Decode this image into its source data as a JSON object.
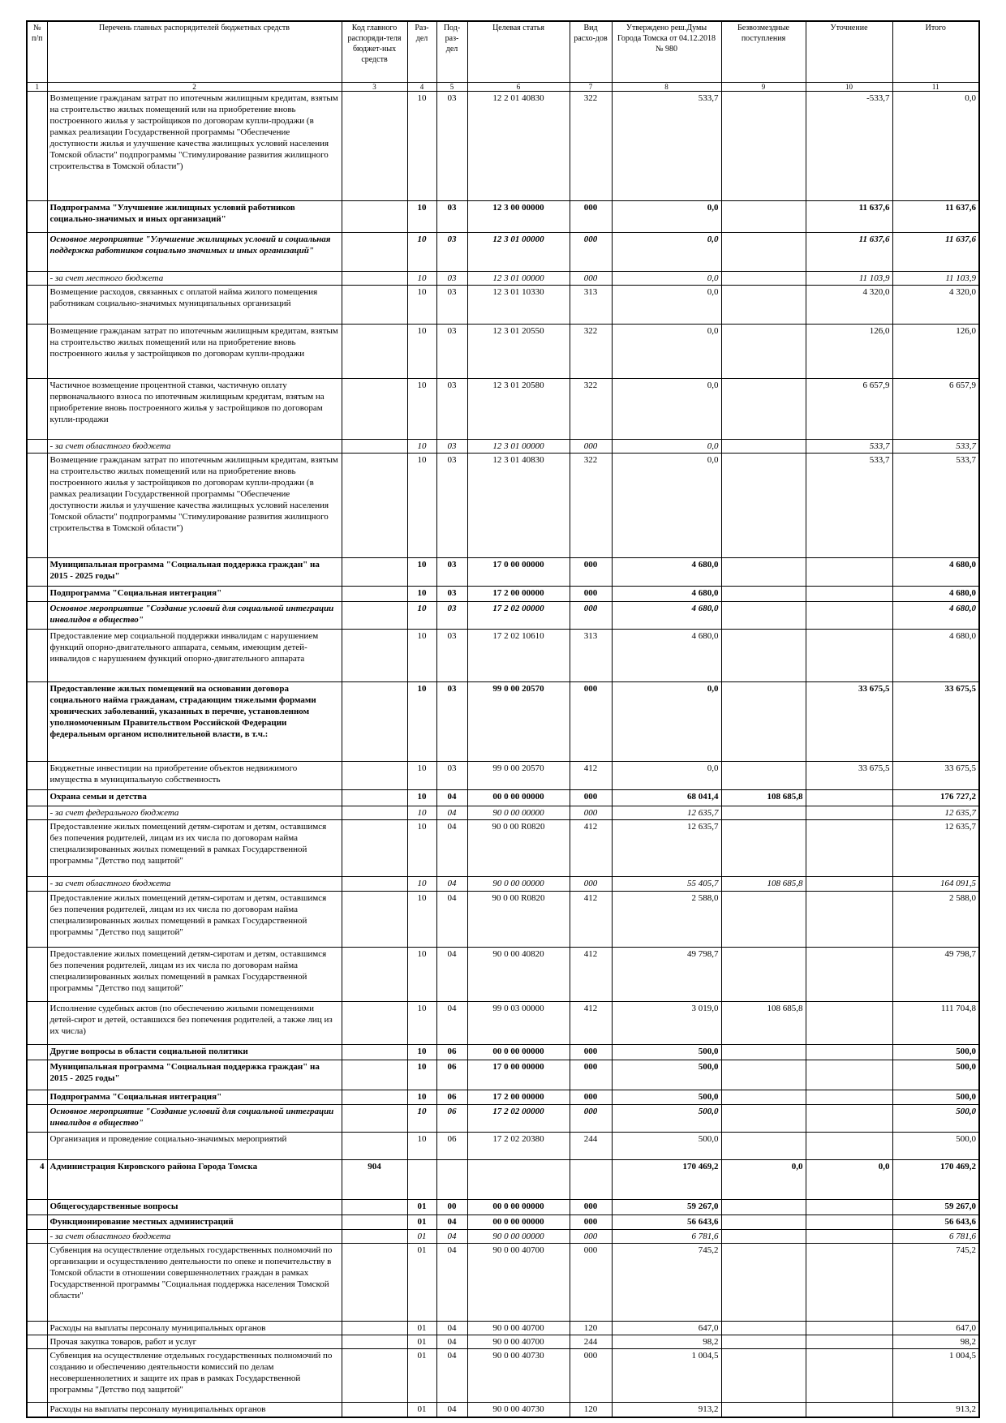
{
  "header": {
    "columns": [
      "№ п/п",
      "Перечень главных распорядителей бюджетных средств",
      "Код главного распоряди-теля бюджет-ных средств",
      "Раз-дел",
      "Под-раз-дел",
      "Целевая статья",
      "Вид расхо-дов",
      "Утверждено реш.Думы Города Томска от 04.12.2018 № 980",
      "Безвозмездные поступления",
      "Уточнение",
      "Итого"
    ],
    "numbers": [
      "1",
      "2",
      "3",
      "4",
      "5",
      "6",
      "7",
      "8",
      "9",
      "10",
      "11"
    ]
  },
  "table": {
    "rows": [
      {
        "style": "normal",
        "cells": [
          null,
          "Возмещение гражданам затрат по ипотечным жилищным кредитам, взятым на строительство жилых помещений или на приобретение вновь построенного жилья у застройщиков по договорам купли-продажи (в рамках реализации Государственной программы \"Обеспечение доступности жилья и улучшение качества жилищных условий населения Томской области\" подпрограммы \"Стимулирование развития жилищного строительства в Томской области\")",
          null,
          "10",
          "03",
          "12 2 01 40830",
          "322",
          "533,7",
          null,
          "-533,7",
          "0,0"
        ]
      },
      {
        "style": "bold",
        "cells": [
          null,
          "Подпрограмма \"Улучшение жилищных условий работников социально-значимых и иных организаций\"",
          null,
          "10",
          "03",
          "12 3 00 00000",
          "000",
          "0,0",
          null,
          "11 637,6",
          "11 637,6"
        ]
      },
      {
        "style": "bold-italic",
        "cells": [
          null,
          "Основное мероприятие \"Улучшение жилищных условий и социальная поддержка работников социально значимых и иных организаций\"",
          null,
          "10",
          "03",
          "12 3 01 00000",
          "000",
          "0,0",
          null,
          "11 637,6",
          "11 637,6"
        ]
      },
      {
        "style": "italic",
        "cells": [
          null,
          "- за счет местного бюджета",
          null,
          "10",
          "03",
          "12 3 01 00000",
          "000",
          "0,0",
          null,
          "11 103,9",
          "11 103,9"
        ]
      },
      {
        "style": "normal",
        "cells": [
          null,
          "Возмещение расходов, связанных с оплатой найма жилого помещения работникам социально-значимых муниципальных организаций",
          null,
          "10",
          "03",
          "12 3 01 10330",
          "313",
          "0,0",
          null,
          "4 320,0",
          "4 320,0"
        ]
      },
      {
        "style": "normal",
        "cells": [
          null,
          "Возмещение гражданам затрат по ипотечным жилищным кредитам, взятым на строительство жилых помещений или на приобретение вновь построенного жилья у застройщиков по договорам купли-продажи",
          null,
          "10",
          "03",
          "12 3 01 20550",
          "322",
          "0,0",
          null,
          "126,0",
          "126,0"
        ]
      },
      {
        "style": "normal",
        "cells": [
          null,
          "Частичное возмещение процентной ставки, частичную оплату первоначального взноса по ипотечным жилищным кредитам, взятым на приобретение вновь построенного жилья у застройщиков по договорам купли-продажи",
          null,
          "10",
          "03",
          "12 3 01 20580",
          "322",
          "0,0",
          null,
          "6 657,9",
          "6 657,9"
        ]
      },
      {
        "style": "italic",
        "cells": [
          null,
          "- за счет областного бюджета",
          null,
          "10",
          "03",
          "12 3 01 00000",
          "000",
          "0,0",
          null,
          "533,7",
          "533,7"
        ]
      },
      {
        "style": "normal",
        "cells": [
          null,
          "Возмещение гражданам затрат по ипотечным жилищным кредитам, взятым на строительство жилых помещений или на приобретение вновь построенного жилья у застройщиков по договорам купли-продажи (в рамках реализации Государственной программы \"Обеспечение доступности жилья и улучшение качества жилищных условий населения Томской области\" подпрограммы \"Стимулирование развития жилищного строительства в Томской области\")",
          null,
          "10",
          "03",
          "12 3 01 40830",
          "322",
          "0,0",
          null,
          "533,7",
          "533,7"
        ]
      },
      {
        "style": "bold-large",
        "cells": [
          null,
          "Муниципальная программа \"Социальная поддержка граждан\" на 2015 - 2025 годы\"",
          null,
          "10",
          "03",
          "17 0 00 00000",
          "000",
          "4 680,0",
          null,
          null,
          "4 680,0"
        ]
      },
      {
        "style": "bold",
        "cells": [
          null,
          "Подпрограмма \"Социальная интеграция\"",
          null,
          "10",
          "03",
          "17 2 00 00000",
          "000",
          "4 680,0",
          null,
          null,
          "4 680,0"
        ]
      },
      {
        "style": "bold-italic",
        "cells": [
          null,
          "Основное мероприятие \"Создание условий для социальной интеграции инвалидов в общество\"",
          null,
          "10",
          "03",
          "17 2 02 00000",
          "000",
          "4 680,0",
          null,
          null,
          "4 680,0"
        ]
      },
      {
        "style": "normal",
        "cells": [
          null,
          "Предоставление мер социальной поддержки инвалидам с нарушением функций опорно-двигательного аппарата, семьям, имеющим детей-инвалидов с нарушением функций опорно-двигательного аппарата",
          null,
          "10",
          "03",
          "17 2 02 10610",
          "313",
          "4 680,0",
          null,
          null,
          "4 680,0"
        ]
      },
      {
        "style": "bold",
        "cells": [
          null,
          "Предоставление жилых помещений на основании договора социального найма гражданам, страдающим тяжелыми формами хронических заболеваний, указанных в перечне, установленном уполномоченным Правительством Российской Федерации федеральным органом исполнительной власти, в т.ч.:",
          null,
          "10",
          "03",
          "99 0 00 20570",
          "000",
          "0,0",
          null,
          "33 675,5",
          "33 675,5"
        ]
      },
      {
        "style": "normal",
        "cells": [
          null,
          "Бюджетные инвестиции на приобретение объектов недвижимого имущества в муниципальную собственность",
          null,
          "10",
          "03",
          "99 0 00 20570",
          "412",
          "0,0",
          null,
          "33 675,5",
          "33 675,5"
        ]
      },
      {
        "style": "blue",
        "cells": [
          null,
          "Охрана семьи и детства",
          null,
          "10",
          "04",
          "00 0 00 00000",
          "000",
          "68 041,4",
          "108 685,8",
          null,
          "176 727,2"
        ]
      },
      {
        "style": "italic",
        "cells": [
          null,
          "- за счет федерального бюджета",
          null,
          "10",
          "04",
          "90 0 00 00000",
          "000",
          "12 635,7",
          null,
          null,
          "12 635,7"
        ]
      },
      {
        "style": "normal",
        "cells": [
          null,
          "Предоставление жилых помещений детям-сиротам и детям, оставшимся без попечения родителей, лицам из их числа по договорам найма специализированных жилых помещений в рамках Государственной программы \"Детство под защитой\"",
          null,
          "10",
          "04",
          "90 0 00 R0820",
          "412",
          "12 635,7",
          null,
          null,
          "12 635,7"
        ]
      },
      {
        "style": "italic",
        "cells": [
          null,
          "- за счет областного бюджета",
          null,
          "10",
          "04",
          "90 0 00 00000",
          "000",
          "55 405,7",
          "108 685,8",
          null,
          "164 091,5"
        ]
      },
      {
        "style": "normal",
        "cells": [
          null,
          "Предоставление жилых помещений детям-сиротам и детям, оставшимся без попечения родителей, лицам из их числа по договорам найма специализированных жилых помещений в рамках Государственной программы \"Детство под защитой\"",
          null,
          "10",
          "04",
          "90 0 00 R0820",
          "412",
          "2 588,0",
          null,
          null,
          "2 588,0"
        ]
      },
      {
        "style": "normal",
        "cells": [
          null,
          "Предоставление жилых помещений детям-сиротам и детям, оставшимся без попечения родителей, лицам из их числа по договорам найма специализированных жилых помещений в рамках Государственной программы \"Детство под защитой\"",
          null,
          "10",
          "04",
          "90 0 00 40820",
          "412",
          "49 798,7",
          null,
          null,
          "49 798,7"
        ]
      },
      {
        "style": "normal",
        "cells": [
          null,
          "Исполнение судебных актов (по обеспечению жилыми помещениями детей-сирот и детей, оставшихся без попечения родителей, а также лиц из их числа)",
          null,
          "10",
          "04",
          "99 0 03 00000",
          "412",
          "3 019,0",
          "108 685,8",
          null,
          "111 704,8"
        ]
      },
      {
        "style": "blue",
        "cells": [
          null,
          "Другие вопросы в области социальной политики",
          null,
          "10",
          "06",
          "00 0 00 00000",
          "000",
          "500,0",
          null,
          null,
          "500,0"
        ]
      },
      {
        "style": "bold-large",
        "cells": [
          null,
          "Муниципальная программа \"Социальная поддержка граждан\" на 2015 - 2025 годы\"",
          null,
          "10",
          "06",
          "17 0 00 00000",
          "000",
          "500,0",
          null,
          null,
          "500,0"
        ]
      },
      {
        "style": "bold-large",
        "cells": [
          null,
          "Подпрограмма \"Социальная интеграция\"",
          null,
          "10",
          "06",
          "17 2 00 00000",
          "000",
          "500,0",
          null,
          null,
          "500,0"
        ]
      },
      {
        "style": "bold-italic",
        "cells": [
          null,
          "Основное мероприятие \"Создание условий для социальной интеграции инвалидов в общество\"",
          null,
          "10",
          "06",
          "17 2 02 00000",
          "000",
          "500,0",
          null,
          null,
          "500,0"
        ]
      },
      {
        "style": "normal",
        "cells": [
          null,
          "Организация и проведение социально-значимых мероприятий",
          null,
          "10",
          "06",
          "17 2 02 20380",
          "244",
          "500,0",
          null,
          null,
          "500,0"
        ]
      },
      {
        "style": "red",
        "cells": [
          "4",
          "Администрация Кировского района Города Томска",
          "904",
          null,
          null,
          null,
          null,
          "170 469,2",
          "0,0",
          "0,0",
          "170 469,2"
        ]
      },
      {
        "style": "blue",
        "cells": [
          null,
          "Общегосударственные вопросы",
          null,
          "01",
          "00",
          "00 0 00 00000",
          "000",
          "59 267,0",
          null,
          null,
          "59 267,0"
        ]
      },
      {
        "style": "blue",
        "cells": [
          null,
          "Функционирование местных администраций",
          null,
          "01",
          "04",
          "00 0 00 00000",
          "000",
          "56 643,6",
          null,
          null,
          "56 643,6"
        ]
      },
      {
        "style": "italic",
        "cells": [
          null,
          "- за счет областного бюджета",
          null,
          "01",
          "04",
          "90 0 00 00000",
          "000",
          "6 781,6",
          null,
          null,
          "6 781,6"
        ]
      },
      {
        "style": "normal",
        "cells": [
          null,
          "Субвенция на осуществление отдельных государственных полномочий по организации и осуществлению деятельности по опеке и попечительству в Томской области в отношении совершеннолетних граждан в рамках Государственной программы \"Социальная поддержка населения Томской области\"",
          null,
          "01",
          "04",
          "90 0 00 40700",
          "000",
          "745,2",
          null,
          null,
          "745,2"
        ]
      },
      {
        "style": "normal",
        "cells": [
          null,
          "Расходы на выплаты персоналу муниципальных органов",
          null,
          "01",
          "04",
          "90 0 00 40700",
          "120",
          "647,0",
          null,
          null,
          "647,0"
        ]
      },
      {
        "style": "normal",
        "cells": [
          null,
          "Прочая закупка товаров, работ и услуг",
          null,
          "01",
          "04",
          "90 0 00 40700",
          "244",
          "98,2",
          null,
          null,
          "98,2"
        ]
      },
      {
        "style": "normal",
        "cells": [
          null,
          "Субвенция на осуществление отдельных государственных полномочий по созданию и обеспечению деятельности комиссий по делам несовершеннолетних и защите их прав в рамках Государственной программы \"Детство под защитой\"",
          null,
          "01",
          "04",
          "90 0 00 40730",
          "000",
          "1 004,5",
          null,
          null,
          "1 004,5"
        ]
      },
      {
        "style": "normal",
        "cells": [
          null,
          "Расходы на выплаты персоналу муниципальных органов",
          null,
          "01",
          "04",
          "90 0 00 40730",
          "120",
          "913,2",
          null,
          null,
          "913,2"
        ]
      }
    ]
  }
}
